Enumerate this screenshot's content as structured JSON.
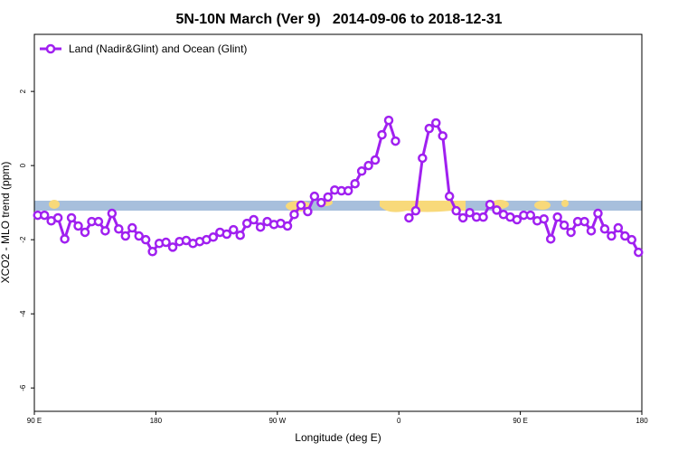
{
  "chart_data": {
    "type": "line",
    "title": "5N-10N March (Ver 9)   2014-09-06 to 2018-12-31",
    "xlabel": "Longitude (deg E)",
    "ylabel": "XCO2 - MLO trend (ppm)",
    "xlim": [
      90,
      540
    ],
    "ylim": [
      -6.63,
      3.54
    ],
    "xticks": [
      {
        "value": 90,
        "label": "90 E"
      },
      180,
      {
        "value": 270,
        "label": "90 W"
      },
      {
        "value": 360,
        "label": "0"
      },
      {
        "value": 450,
        "label": "90 E"
      },
      {
        "value": 540,
        "label": "180"
      }
    ],
    "yticks": [
      -6,
      -4,
      -2,
      0,
      2
    ],
    "legend": "top-left",
    "x": [
      92.5,
      97.5,
      102.5,
      107.5,
      112.5,
      117.5,
      122.5,
      127.5,
      132.5,
      137.5,
      142.5,
      147.5,
      152.5,
      157.5,
      162.5,
      167.5,
      172.5,
      177.5,
      182.5,
      187.5,
      192.5,
      197.5,
      202.5,
      207.5,
      212.5,
      217.5,
      222.5,
      227.5,
      232.5,
      237.5,
      242.5,
      247.5,
      252.5,
      257.5,
      262.5,
      267.5,
      272.5,
      277.5,
      282.5,
      287.5,
      292.5,
      297.5,
      302.5,
      307.5,
      312.5,
      317.5,
      322.5,
      327.5,
      332.5,
      337.5,
      342.5,
      347.5,
      352.5,
      357.5,
      362.5,
      367.5,
      372.5,
      377.5,
      382.5,
      387.5,
      392.5,
      397.5,
      402.5,
      407.5,
      412.5,
      417.5,
      422.5,
      427.5,
      432.5,
      437.5,
      442.5,
      447.5,
      452.5,
      457.5,
      462.5,
      467.5,
      472.5,
      477.5,
      482.5,
      487.5,
      492.5,
      497.5,
      502.5,
      507.5,
      512.5,
      517.5,
      522.5,
      527.5,
      532.5,
      537.5
    ],
    "series": [
      {
        "name": "Land (Nadir&Glint) and Ocean (Glint)",
        "color": "#a020f0",
        "values": [
          -1.34,
          -1.34,
          -1.49,
          -1.41,
          -1.98,
          -1.41,
          -1.63,
          -1.8,
          -1.51,
          -1.51,
          -1.76,
          -1.29,
          -1.71,
          -1.9,
          -1.68,
          -1.9,
          -2.0,
          -2.32,
          -2.1,
          -2.07,
          -2.2,
          -2.05,
          -2.02,
          -2.1,
          -2.05,
          -2.0,
          -1.93,
          -1.8,
          -1.85,
          -1.73,
          -1.88,
          -1.56,
          -1.46,
          -1.66,
          -1.51,
          -1.59,
          -1.56,
          -1.63,
          -1.32,
          -1.07,
          -1.24,
          -0.83,
          -1.0,
          -0.85,
          -0.66,
          -0.68,
          -0.68,
          -0.49,
          -0.15,
          0.0,
          0.15,
          0.83,
          1.22,
          0.66,
          null,
          -1.41,
          -1.22,
          0.2,
          1.0,
          1.15,
          0.8,
          -0.83,
          -1.22,
          -1.41,
          -1.27,
          -1.39,
          -1.39,
          -1.05,
          -1.2,
          -1.32,
          -1.39,
          -1.46,
          -1.34,
          -1.34,
          -1.49,
          -1.44,
          -1.98,
          -1.39,
          -1.61,
          -1.8,
          -1.51,
          -1.51,
          -1.76,
          -1.29,
          -1.71,
          -1.9,
          -1.68,
          -1.9,
          -2.0,
          -2.34
        ]
      }
    ]
  }
}
